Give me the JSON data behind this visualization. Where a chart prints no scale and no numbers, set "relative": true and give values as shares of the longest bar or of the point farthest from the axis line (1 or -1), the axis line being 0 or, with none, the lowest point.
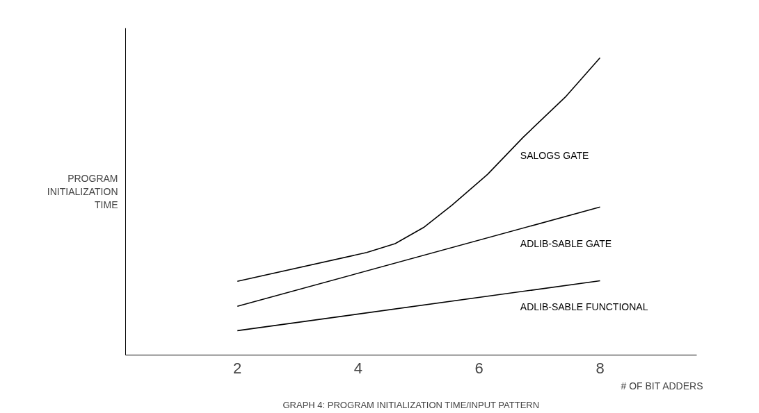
{
  "chart_data": {
    "type": "line",
    "title": "GRAPH 4: PROGRAM INITIALIZATION TIME/INPUT PATTERN",
    "xlabel": "# OF BIT ADDERS",
    "ylabel": "PROGRAM INITIALIZATION TIME",
    "relative": true,
    "xlim": [
      0.15,
      9.6
    ],
    "xticks": [
      2,
      4,
      6,
      8
    ],
    "grid": false,
    "legend": false,
    "marker": "none",
    "line_style": "solid",
    "series": [
      {
        "name": "SALOGS GATE",
        "color": "#000000",
        "x": [
          2,
          4.14,
          4.61,
          5.08,
          5.55,
          6.14,
          6.73,
          7.44,
          8
        ],
        "values": [
          0.248,
          0.345,
          0.375,
          0.429,
          0.504,
          0.608,
          0.733,
          0.871,
          1
        ]
      },
      {
        "name": "ADLIB-SABLE GATE",
        "color": "#000000",
        "x": [
          2,
          8
        ],
        "values": [
          0.164,
          0.498
        ]
      },
      {
        "name": "ADLIB-SABLE FUNCTIONAL",
        "color": "#000000",
        "x": [
          2,
          8
        ],
        "values": [
          0.082,
          0.25
        ]
      }
    ]
  }
}
